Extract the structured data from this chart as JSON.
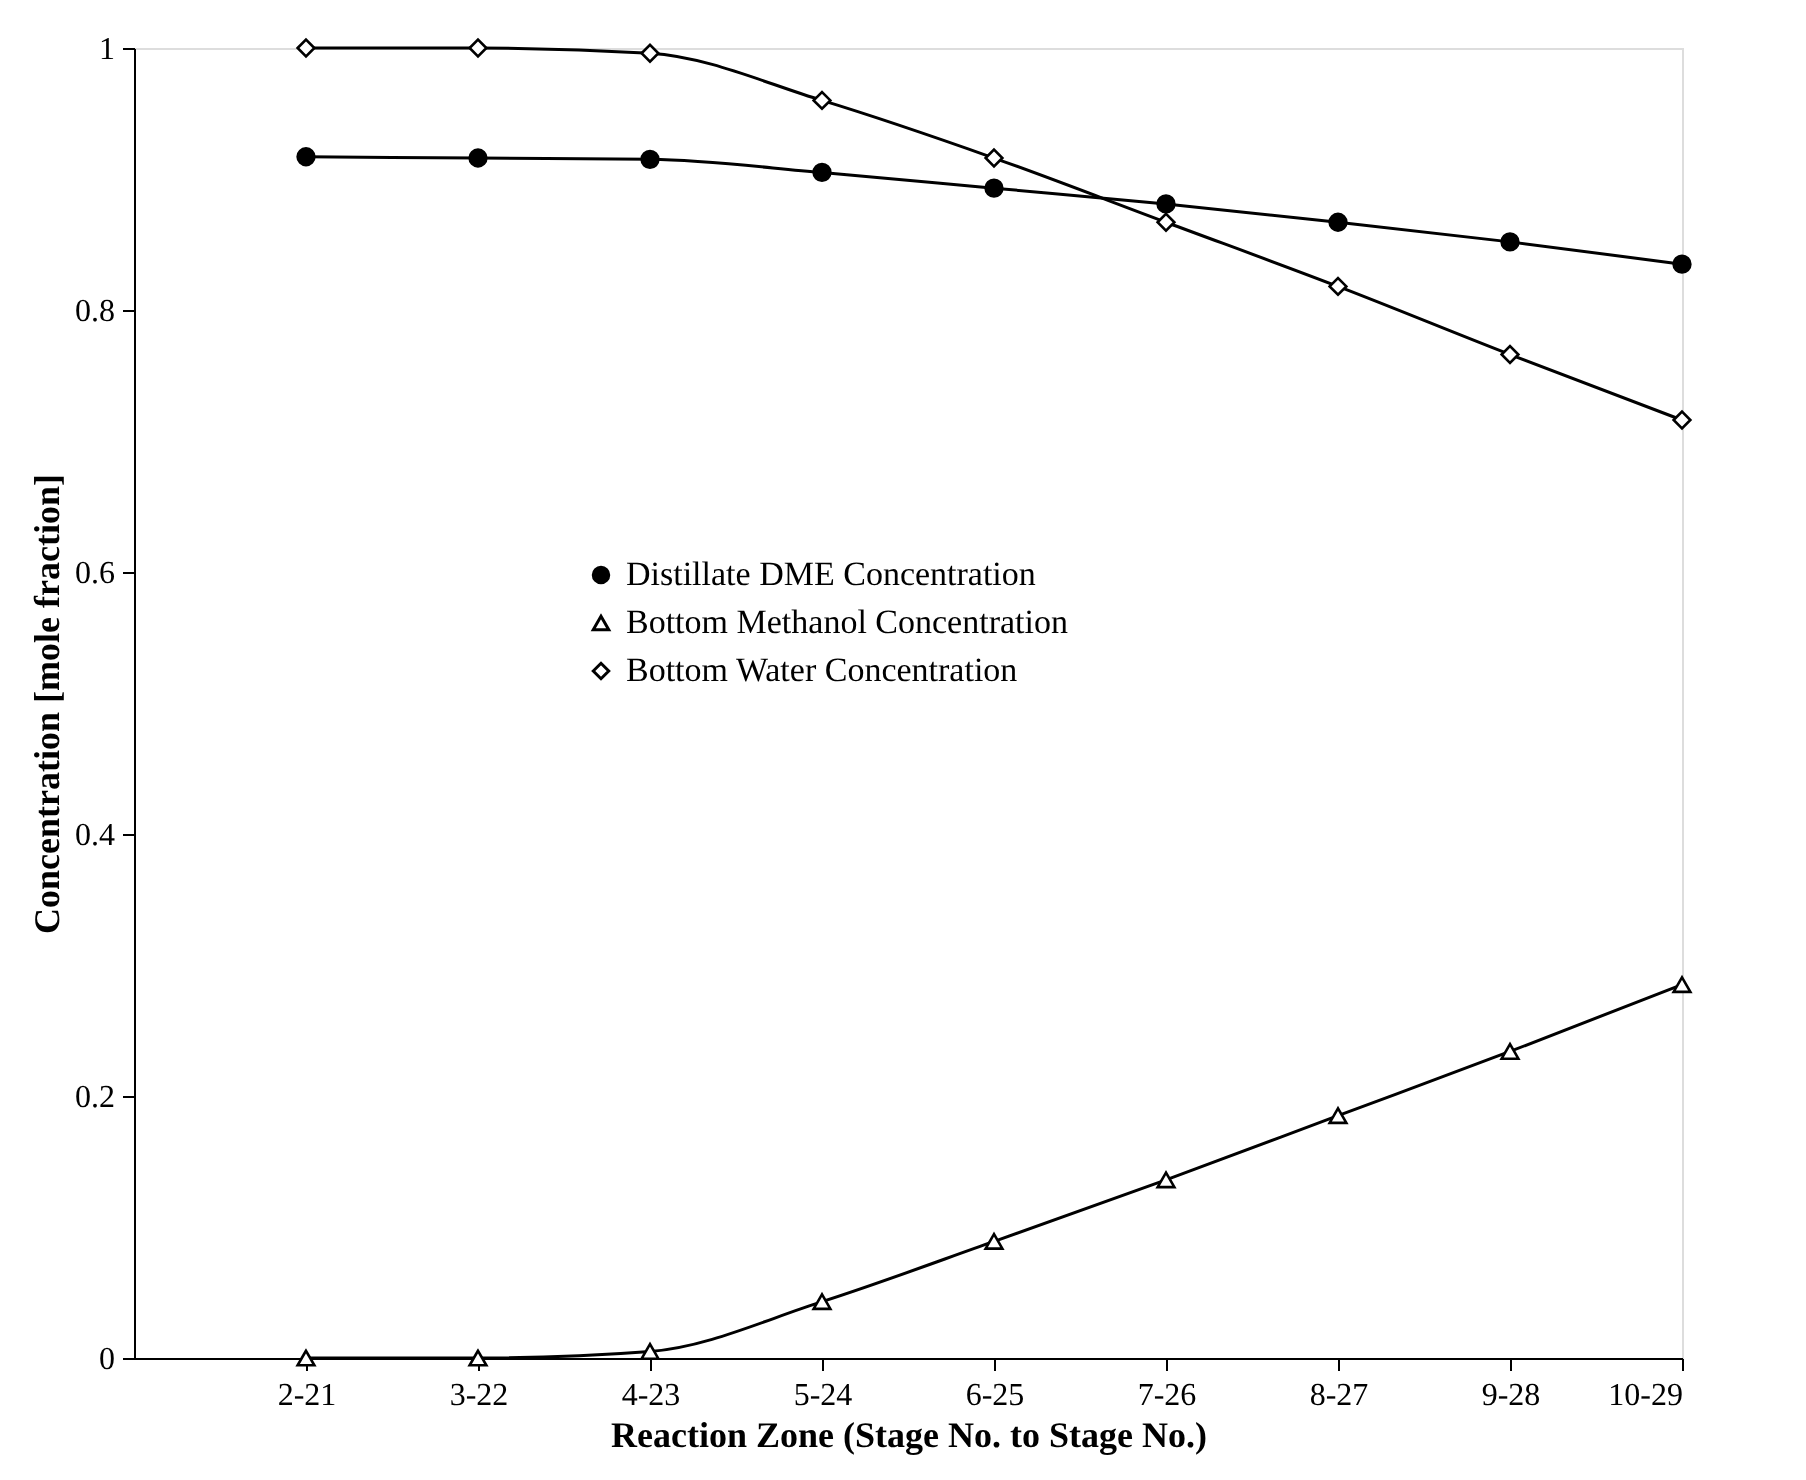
{
  "chart_data": {
    "type": "line",
    "xlabel": "Reaction Zone (Stage No. to Stage No.)",
    "ylabel": "Concentration [mole fraction]",
    "categories": [
      "2-21",
      "3-22",
      "4-23",
      "5-24",
      "6-25",
      "7-26",
      "8-27",
      "9-28",
      "10-29"
    ],
    "ylim": [
      0,
      1
    ],
    "yticks": [
      0,
      0.2,
      0.4,
      0.6,
      0.8,
      1
    ],
    "grid": false,
    "legend": "center",
    "series": [
      {
        "name": "Distillate DME Concentration",
        "color": "#000000",
        "marker": "circle",
        "values": [
          0.917,
          0.916,
          0.915,
          0.905,
          0.893,
          0.881,
          0.867,
          0.852,
          0.835
        ]
      },
      {
        "name": "Bottom Methanol Concentration",
        "color": "#000000",
        "marker": "triangle",
        "values": [
          0,
          0,
          0.005,
          0.043,
          0.089,
          0.136,
          0.185,
          0.234,
          0.285
        ]
      },
      {
        "name": "Bottom Water Concentration",
        "color": "#000000",
        "marker": "diamond",
        "values": [
          1.0,
          1.0,
          0.996,
          0.96,
          0.916,
          0.867,
          0.818,
          0.766,
          0.716
        ]
      }
    ]
  }
}
